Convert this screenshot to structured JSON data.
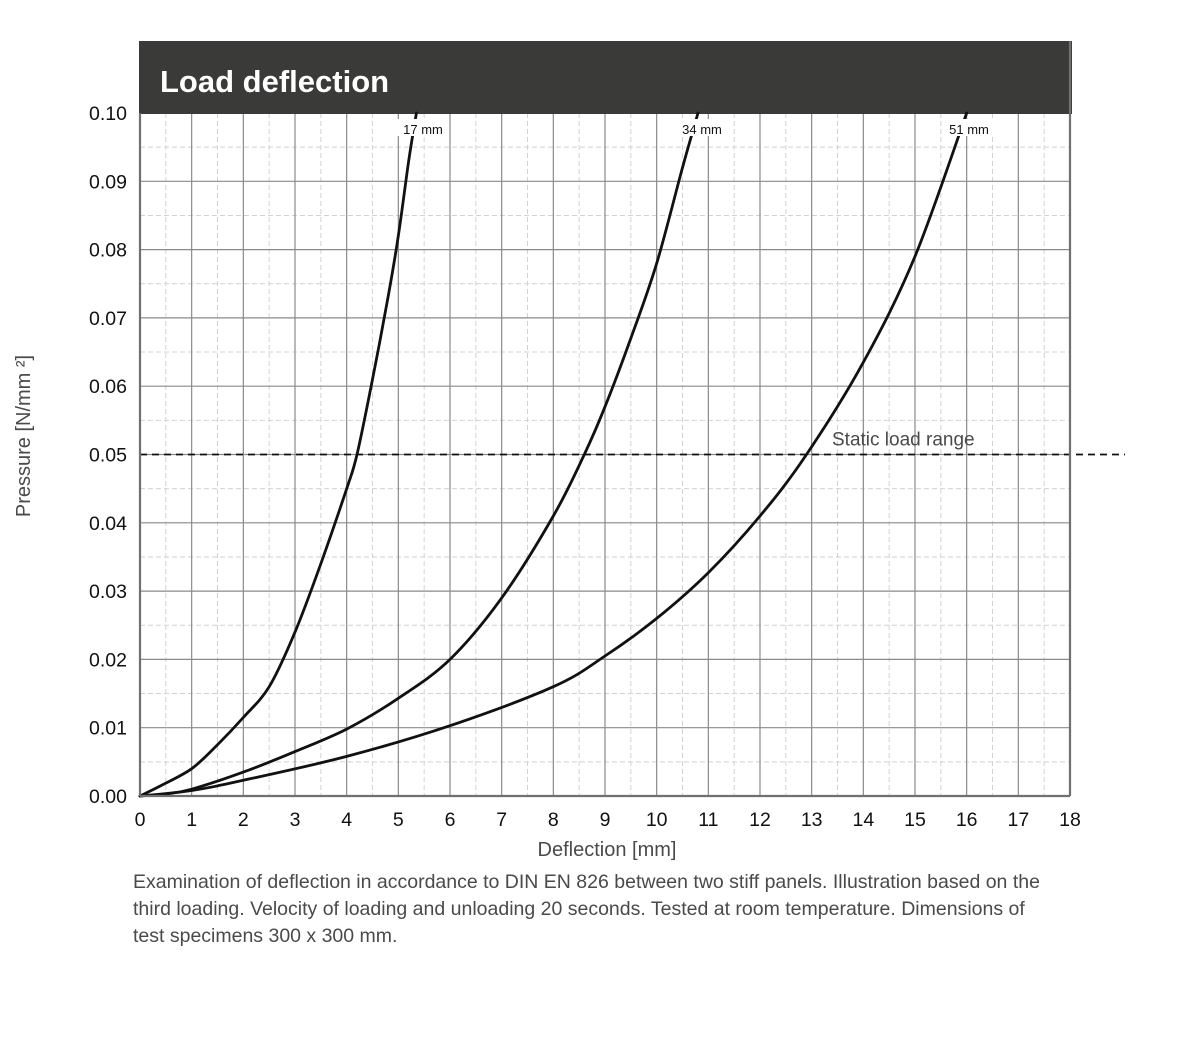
{
  "chart_data": {
    "type": "line",
    "title": "Load deflection",
    "xlabel": "Deflection [mm]",
    "ylabel": "Pressure [N/mm ²]",
    "xlim": [
      0,
      18
    ],
    "ylim": [
      0,
      0.1
    ],
    "x_ticks": [
      "0",
      "1",
      "2",
      "3",
      "4",
      "5",
      "6",
      "7",
      "8",
      "9",
      "10",
      "11",
      "12",
      "13",
      "14",
      "15",
      "16",
      "17",
      "18"
    ],
    "y_ticks": [
      "0.00",
      "0.01",
      "0.02",
      "0.03",
      "0.04",
      "0.05",
      "0.06",
      "0.07",
      "0.08",
      "0.09",
      "0.10"
    ],
    "grid": true,
    "series": [
      {
        "name": "17 mm",
        "points": [
          [
            0,
            0
          ],
          [
            0.4,
            0.0015
          ],
          [
            1.0,
            0.004
          ],
          [
            1.5,
            0.0075
          ],
          [
            2.0,
            0.0115
          ],
          [
            2.5,
            0.016
          ],
          [
            3.0,
            0.024
          ],
          [
            3.5,
            0.034
          ],
          [
            4.0,
            0.045
          ],
          [
            4.2,
            0.05
          ],
          [
            4.5,
            0.061
          ],
          [
            4.8,
            0.073
          ],
          [
            5.0,
            0.082
          ],
          [
            5.2,
            0.093
          ],
          [
            5.35,
            0.1
          ]
        ]
      },
      {
        "name": "34 mm",
        "points": [
          [
            0,
            0
          ],
          [
            0.5,
            0.0003
          ],
          [
            1.0,
            0.001
          ],
          [
            2.0,
            0.0035
          ],
          [
            3.0,
            0.0065
          ],
          [
            4.0,
            0.0098
          ],
          [
            5.0,
            0.0143
          ],
          [
            6.0,
            0.02
          ],
          [
            7.0,
            0.029
          ],
          [
            8.0,
            0.041
          ],
          [
            8.6,
            0.05
          ],
          [
            9.0,
            0.057
          ],
          [
            9.5,
            0.067
          ],
          [
            10.0,
            0.078
          ],
          [
            10.5,
            0.092
          ],
          [
            10.8,
            0.1
          ]
        ]
      },
      {
        "name": "51 mm",
        "points": [
          [
            0,
            0
          ],
          [
            1.0,
            0.0008
          ],
          [
            2.0,
            0.0023
          ],
          [
            4.0,
            0.0058
          ],
          [
            6.0,
            0.0103
          ],
          [
            8.0,
            0.016
          ],
          [
            9.0,
            0.0205
          ],
          [
            10.0,
            0.026
          ],
          [
            11.0,
            0.0327
          ],
          [
            12.0,
            0.041
          ],
          [
            12.9,
            0.05
          ],
          [
            14.0,
            0.0635
          ],
          [
            15.0,
            0.079
          ],
          [
            16.0,
            0.1
          ]
        ]
      }
    ],
    "annotations": [
      {
        "text": "Static load range",
        "type": "dashed-horizontal-line",
        "y": 0.05
      }
    ]
  },
  "caption": "Examination of deflection in accordance to DIN EN 826 between two stiff panels. Illustration based on the third loading. Velocity of loading and unloading 20 seconds. Tested at room temperature. Dimensions of test specimens 300 x 300 mm.",
  "colors": {
    "header_bg": "#3a3a39",
    "header_text": "#ffffff",
    "grid_major": "#8a8a8a",
    "grid_minor": "#d2d2d2",
    "curve": "#111111",
    "label_text": "#4a4a4a"
  }
}
